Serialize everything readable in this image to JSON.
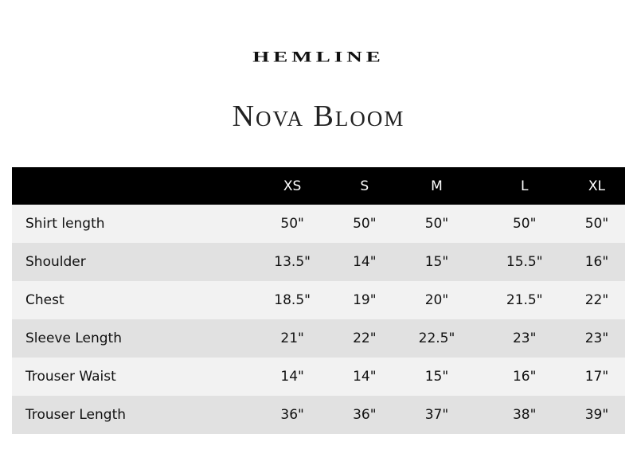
{
  "brand": "HEMLINE",
  "title": "Nova Bloom",
  "table": {
    "headers": [
      "",
      "XS",
      "S",
      "M",
      "L",
      "XL"
    ],
    "rows": [
      {
        "label": "Shirt length",
        "values": [
          "50\"",
          "50\"",
          "50\"",
          "50\"",
          "50\""
        ]
      },
      {
        "label": "Shoulder",
        "values": [
          "13.5\"",
          "14\"",
          "15\"",
          "15.5\"",
          "16\""
        ]
      },
      {
        "label": "Chest",
        "values": [
          "18.5\"",
          "19\"",
          "20\"",
          "21.5\"",
          "22\""
        ]
      },
      {
        "label": "Sleeve Length",
        "values": [
          "21\"",
          "22\"",
          "22.5\"",
          "23\"",
          "23\""
        ]
      },
      {
        "label": "Trouser Waist",
        "values": [
          "14\"",
          "14\"",
          "15\"",
          "16\"",
          "17\""
        ]
      },
      {
        "label": "Trouser Length",
        "values": [
          "36\"",
          "36\"",
          "37\"",
          "38\"",
          "39\""
        ]
      }
    ]
  }
}
